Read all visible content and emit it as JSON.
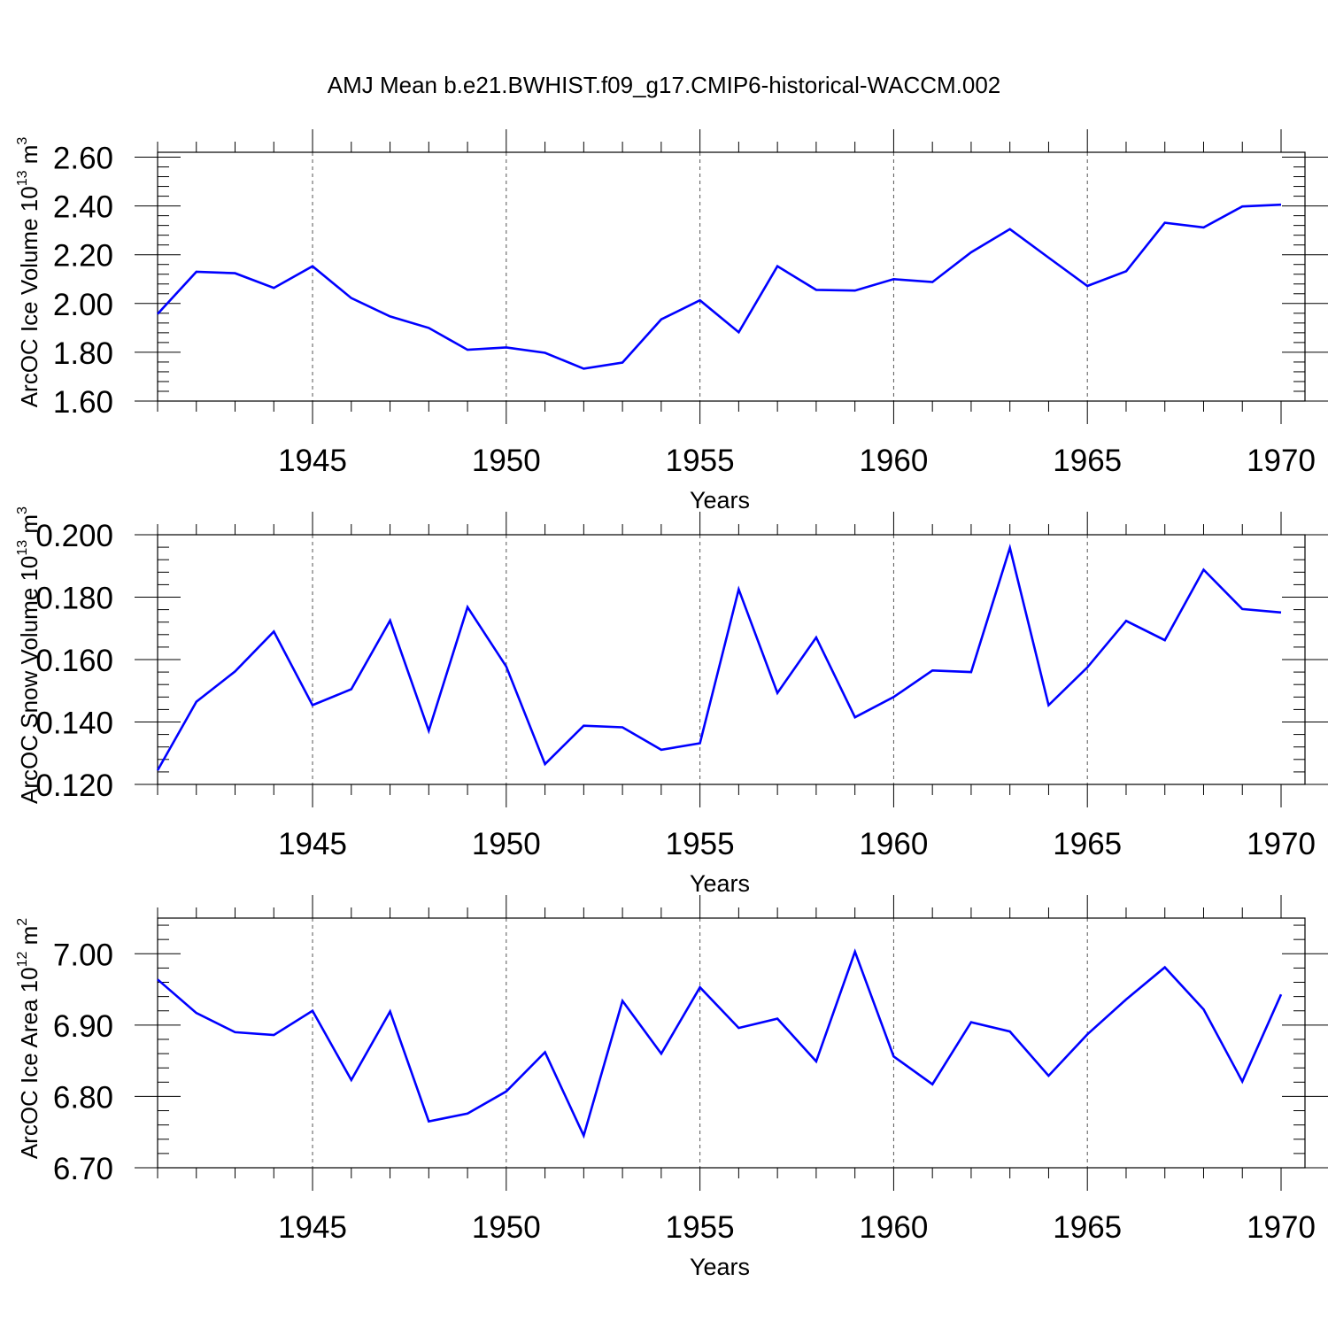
{
  "title": "AMJ Mean b.e21.BWHIST.f09_g17.CMIP6-historical-WACCM.002",
  "chart_data": [
    {
      "type": "line",
      "ylabel": "ArcOC Ice Volume 10",
      "ylabel_exp": "13",
      "ylabel_unit": " m",
      "ylabel_unit_exp": "3",
      "xlabel": "Years",
      "xlim": [
        1941,
        1970
      ],
      "ylim": [
        1.6,
        2.62
      ],
      "yticks": [
        1.6,
        1.8,
        2.0,
        2.2,
        2.4,
        2.6
      ],
      "ytick_labels": [
        "1.60",
        "1.80",
        "2.00",
        "2.20",
        "2.40",
        "2.60"
      ],
      "xticks": [
        1945,
        1950,
        1955,
        1960,
        1965,
        1970
      ],
      "xtick_labels": [
        "1945",
        "1950",
        "1955",
        "1960",
        "1965",
        "1970"
      ],
      "grid": "vertical dashed",
      "color": "#0000ff",
      "x": [
        1941,
        1942,
        1943,
        1944,
        1945,
        1946,
        1947,
        1948,
        1949,
        1950,
        1951,
        1952,
        1953,
        1954,
        1955,
        1956,
        1957,
        1958,
        1959,
        1960,
        1961,
        1962,
        1963,
        1964,
        1965,
        1966,
        1967,
        1968,
        1969,
        1970
      ],
      "values": [
        1.957,
        2.13,
        2.124,
        2.064,
        2.153,
        2.022,
        1.947,
        1.9,
        1.81,
        1.82,
        1.798,
        1.733,
        1.758,
        1.935,
        2.013,
        1.882,
        2.153,
        2.056,
        2.053,
        2.1,
        2.088,
        2.21,
        2.305,
        2.188,
        2.072,
        2.132,
        2.331,
        2.312,
        2.398,
        2.405
      ]
    },
    {
      "type": "line",
      "ylabel": "ArcOC Snow Volume 10",
      "ylabel_exp": "13",
      "ylabel_unit": " m",
      "ylabel_unit_exp": "3",
      "xlabel": "Years",
      "xlim": [
        1941,
        1970
      ],
      "ylim": [
        0.12,
        0.2
      ],
      "yticks": [
        0.12,
        0.14,
        0.16,
        0.18,
        0.2
      ],
      "ytick_labels": [
        "0.120",
        "0.140",
        "0.160",
        "0.180",
        "0.200"
      ],
      "xticks": [
        1945,
        1950,
        1955,
        1960,
        1965,
        1970
      ],
      "xtick_labels": [
        "1945",
        "1950",
        "1955",
        "1960",
        "1965",
        "1970"
      ],
      "grid": "vertical dashed",
      "color": "#0000ff",
      "x": [
        1941,
        1942,
        1943,
        1944,
        1945,
        1946,
        1947,
        1948,
        1949,
        1950,
        1951,
        1952,
        1953,
        1954,
        1955,
        1956,
        1957,
        1958,
        1959,
        1960,
        1961,
        1962,
        1963,
        1964,
        1965,
        1966,
        1967,
        1968,
        1969,
        1970
      ],
      "values": [
        0.1245,
        0.1465,
        0.1562,
        0.169,
        0.1454,
        0.1505,
        0.1725,
        0.1372,
        0.1768,
        0.1578,
        0.1265,
        0.1388,
        0.1383,
        0.1311,
        0.1332,
        0.1825,
        0.1493,
        0.1671,
        0.1415,
        0.148,
        0.1565,
        0.156,
        0.1958,
        0.1454,
        0.1575,
        0.1724,
        0.1662,
        0.1888,
        0.1762,
        0.1751
      ]
    },
    {
      "type": "line",
      "ylabel": "ArcOC Ice Area 10",
      "ylabel_exp": "12",
      "ylabel_unit": " m",
      "ylabel_unit_exp": "2",
      "xlabel": "Years",
      "xlim": [
        1941,
        1970
      ],
      "ylim": [
        6.7,
        7.05
      ],
      "yticks": [
        6.7,
        6.8,
        6.9,
        7.0
      ],
      "ytick_labels": [
        "6.70",
        "6.80",
        "6.90",
        "7.00"
      ],
      "xticks": [
        1945,
        1950,
        1955,
        1960,
        1965,
        1970
      ],
      "xtick_labels": [
        "1945",
        "1950",
        "1955",
        "1960",
        "1965",
        "1970"
      ],
      "grid": "vertical dashed",
      "color": "#0000ff",
      "x": [
        1941,
        1942,
        1943,
        1944,
        1945,
        1946,
        1947,
        1948,
        1949,
        1950,
        1951,
        1952,
        1953,
        1954,
        1955,
        1956,
        1957,
        1958,
        1959,
        1960,
        1961,
        1962,
        1963,
        1964,
        1965,
        1966,
        1967,
        1968,
        1969,
        1970
      ],
      "values": [
        6.964,
        6.917,
        6.89,
        6.886,
        6.92,
        6.823,
        6.919,
        6.765,
        6.776,
        6.807,
        6.862,
        6.745,
        6.934,
        6.86,
        6.953,
        6.896,
        6.909,
        6.849,
        7.003,
        6.856,
        6.817,
        6.904,
        6.891,
        6.829,
        6.887,
        6.936,
        6.981,
        6.922,
        6.821,
        6.943
      ]
    }
  ]
}
